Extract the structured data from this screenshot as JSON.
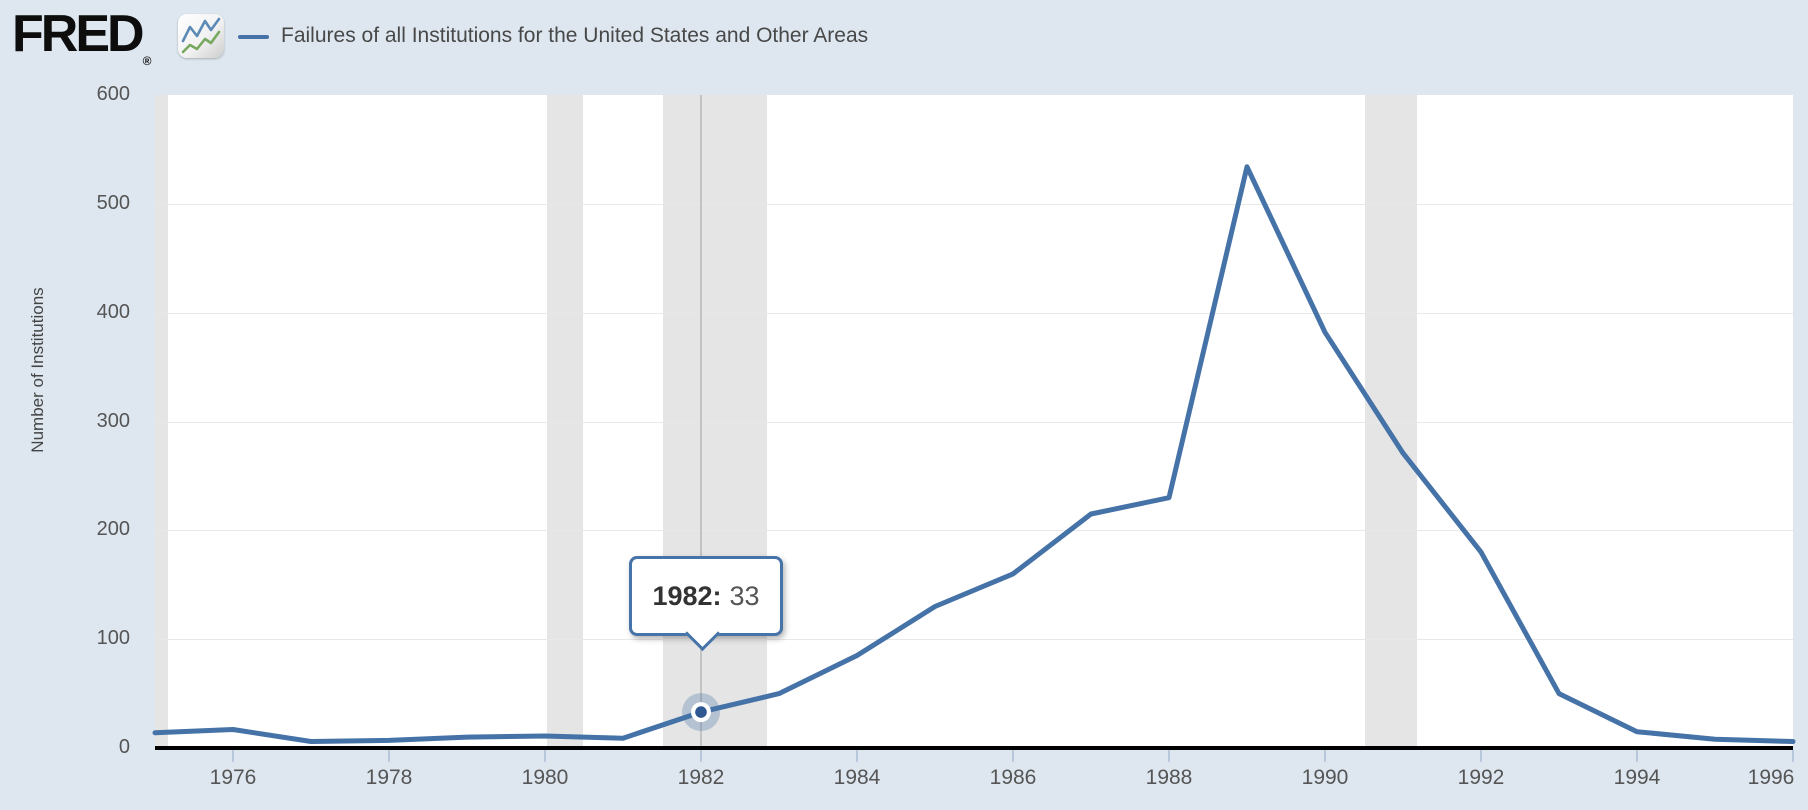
{
  "header": {
    "logo_text": "FRED",
    "logo_registered": "®",
    "legend_label": "Failures of all Institutions for the United States and Other Areas"
  },
  "tooltip": {
    "year_label": "1982:",
    "value": "33"
  },
  "y_axis": {
    "title": "Number of Institutions",
    "tick_values": [
      0,
      100,
      200,
      300,
      400,
      500,
      600
    ]
  },
  "x_axis": {
    "tick_years": [
      1976,
      1978,
      1980,
      1982,
      1984,
      1986,
      1988,
      1990,
      1992,
      1994,
      1996
    ]
  },
  "chart_data": {
    "type": "line",
    "title": "Failures of all Institutions for the United States and Other Areas",
    "xlabel": "",
    "ylabel": "Number of Institutions",
    "x": [
      1975,
      1976,
      1977,
      1978,
      1979,
      1980,
      1981,
      1982,
      1983,
      1984,
      1985,
      1986,
      1987,
      1988,
      1989,
      1990,
      1991,
      1992,
      1993,
      1994,
      1995,
      1996
    ],
    "values": [
      14,
      17,
      6,
      7,
      10,
      11,
      9,
      33,
      50,
      85,
      130,
      160,
      215,
      230,
      534,
      382,
      271,
      180,
      50,
      15,
      8,
      6
    ],
    "xlim": [
      1975,
      1996
    ],
    "ylim": [
      0,
      600
    ],
    "grid": "horizontal",
    "legend_position": "top-left",
    "line_color": "#4572a7",
    "recession_band_color": "#e5e5e5",
    "recession_bands_years": [
      [
        1975.0,
        1975.17
      ],
      [
        1980.03,
        1980.49
      ],
      [
        1981.51,
        1982.84
      ],
      [
        1990.51,
        1991.18
      ]
    ],
    "highlight_point": {
      "x": 1982,
      "y": 33
    },
    "marker_ring_color": "#2f5791",
    "halo_color": "rgba(69,114,167,0.30)"
  }
}
